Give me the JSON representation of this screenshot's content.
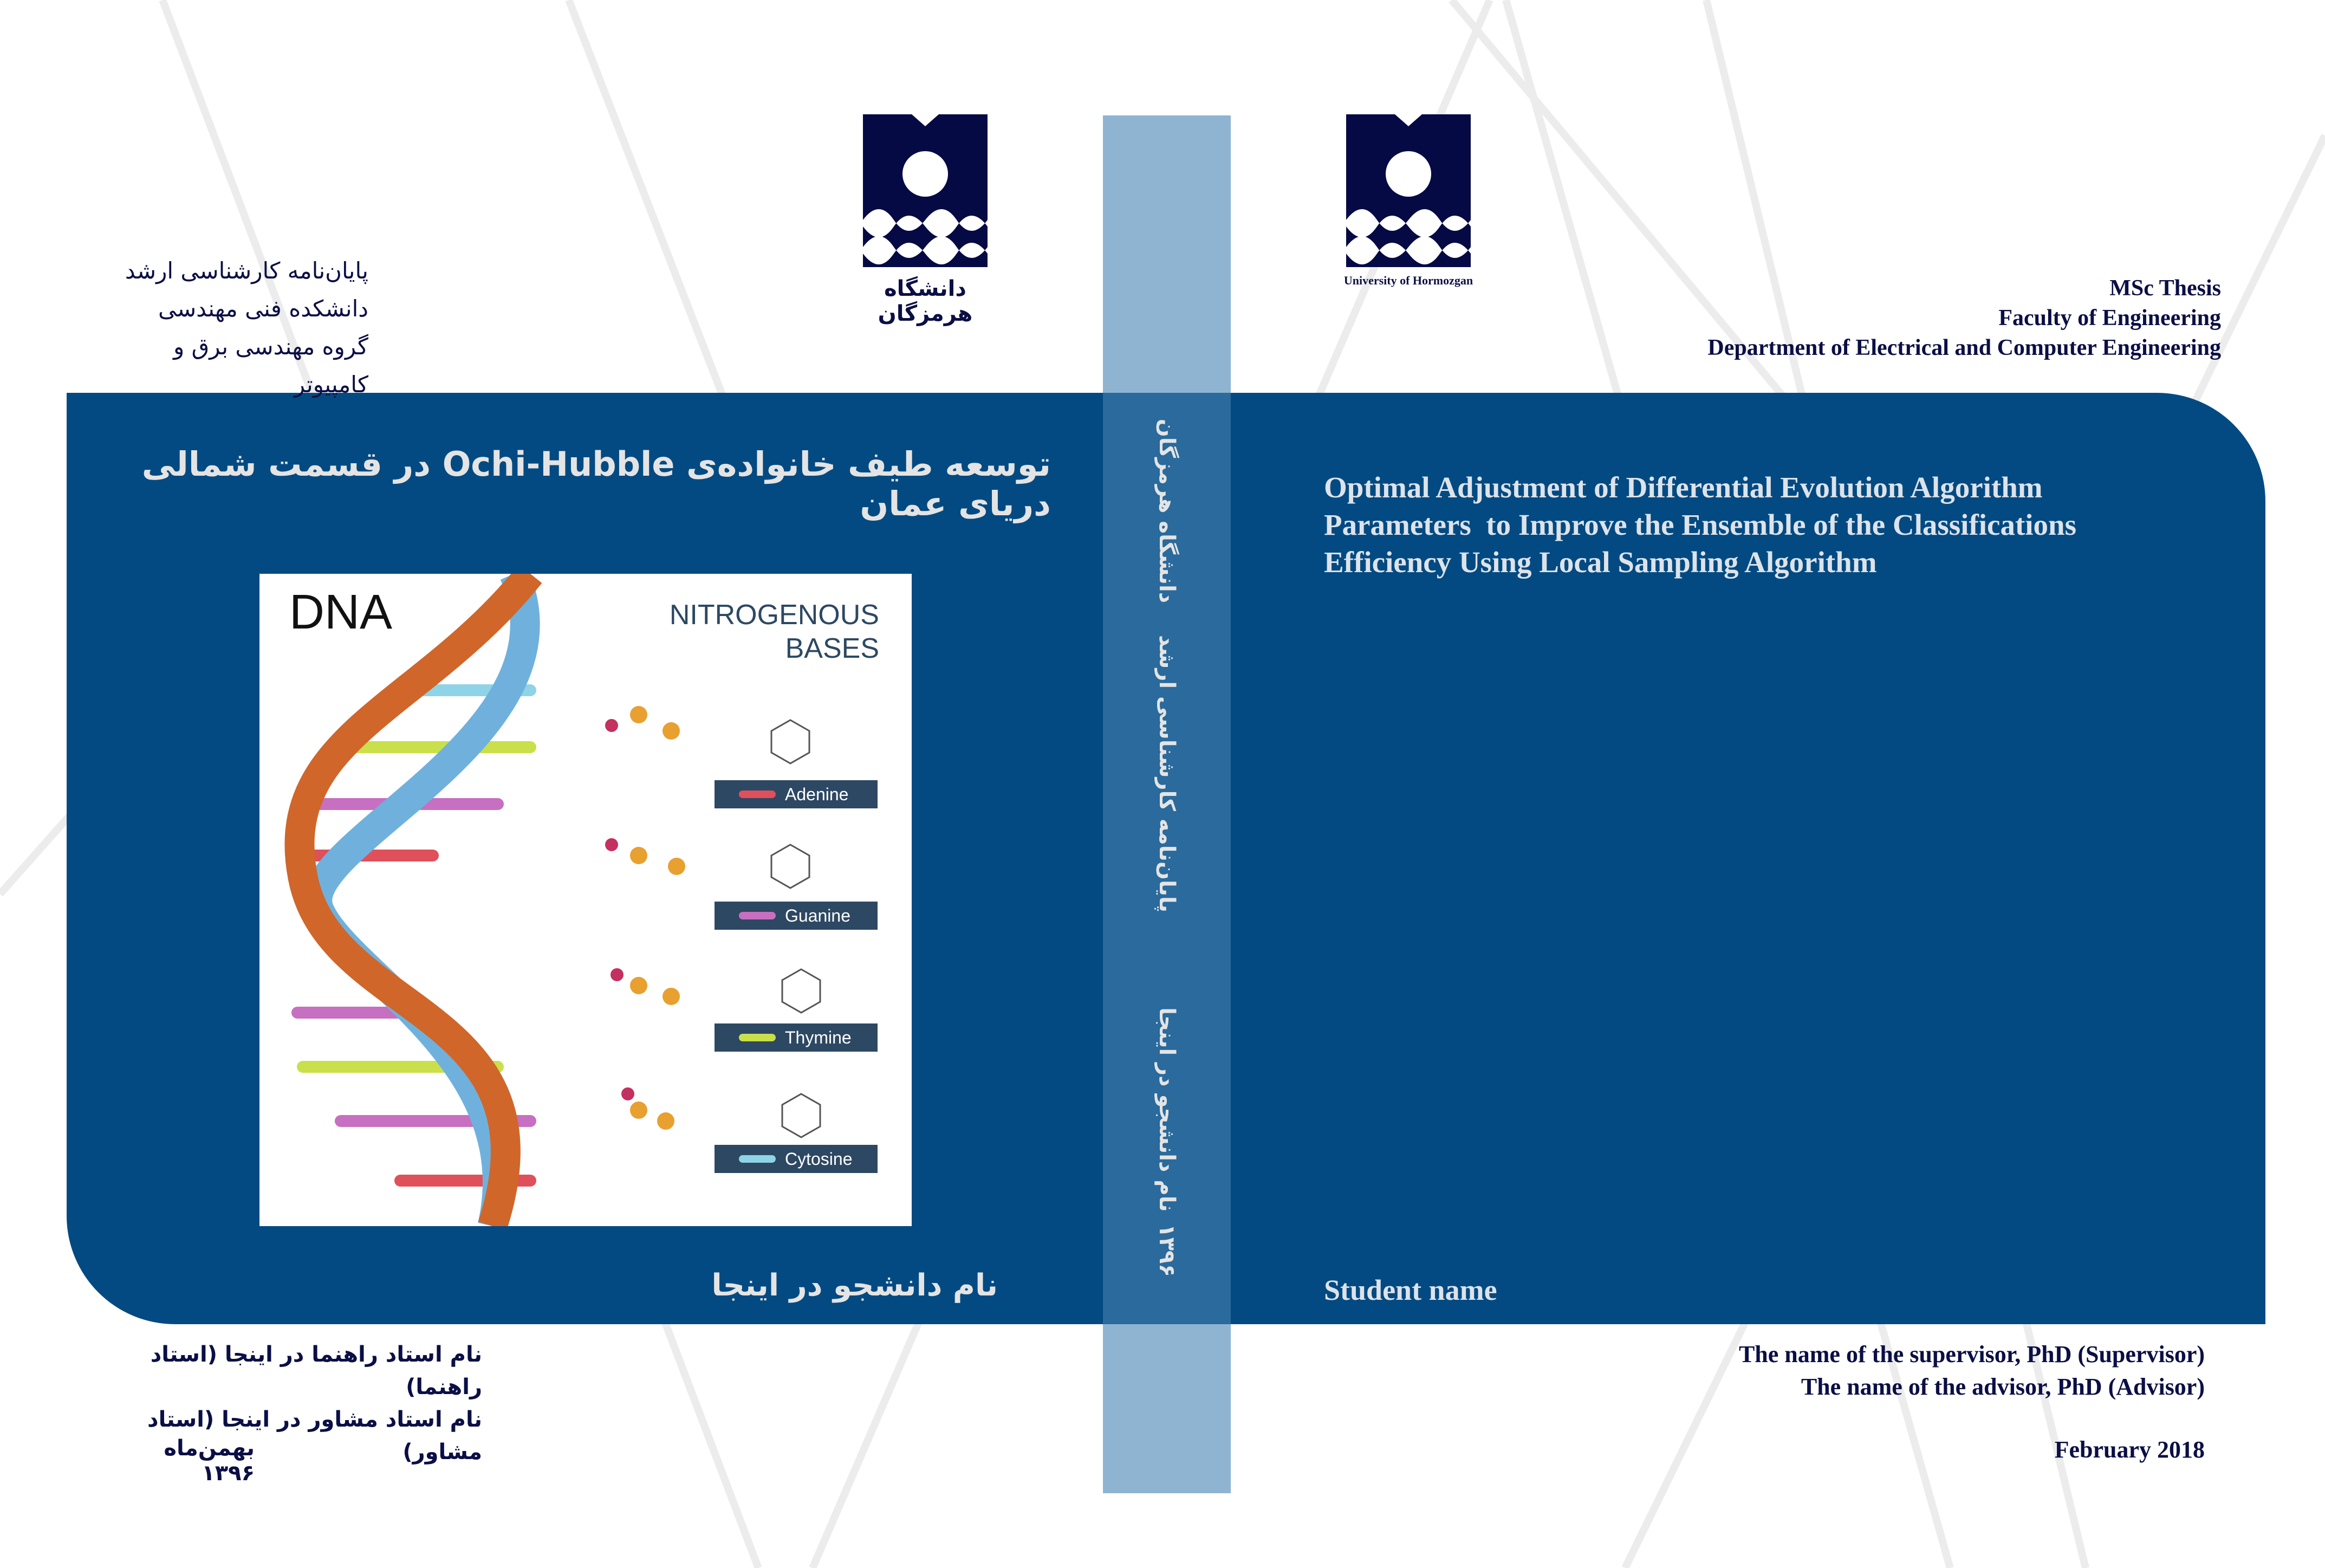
{
  "colors": {
    "band": "#034a82",
    "spine": "#2a6a9c",
    "spine_outer": "#8fb4d2",
    "text_navy": "#0b0f45"
  },
  "left_cover": {
    "header_lines": [
      "پایان‌نامه کارشناسی ارشد",
      "دانشکده فنی مهندسی",
      "گروه مهندسی برق و کامپیوتر"
    ],
    "logo_caption": "دانشگاه هرمزگان",
    "title": "توسعه طیف خانواده‌ی Ochi-Hubble در قسمت شمالی دریای عمان",
    "image": {
      "title": "DNA",
      "subtitle_lines": [
        "NITROGENOUS",
        "BASES"
      ],
      "bases": [
        {
          "name": "Adenine",
          "color": "#e0505a"
        },
        {
          "name": "Guanine",
          "color": "#c76fc0"
        },
        {
          "name": "Thymine",
          "color": "#c9e04a"
        },
        {
          "name": "Cytosine",
          "color": "#8fd4e6"
        }
      ]
    },
    "student": "نام دانشجو در اینجا",
    "supervisor": "نام استاد راهنما در اینجا (استاد راهنما)",
    "advisor": "نام استاد مشاور در اینجا (استاد مشاور)",
    "date": "بهمن‌ماه ۱۳۹۶"
  },
  "spine": {
    "texts": [
      "دانشگاه هرمزگان",
      "پایان‌نامه کارشناسی ارشد",
      "نام دانشجو در اینجا",
      "۱۳۹۶"
    ]
  },
  "right_cover": {
    "logo_caption": "University of Hormozgan",
    "header_lines": [
      "MSc Thesis",
      "Faculty of Engineering",
      "Department of Electrical and Computer Engineering"
    ],
    "title_lines": [
      "Optimal Adjustment of Differential Evolution Algorithm",
      "Parameters  to Improve the Ensemble of the Classifications",
      "Efficiency Using Local Sampling Algorithm"
    ],
    "student": "Student name",
    "supervisor": "The name of the supervisor, PhD (Supervisor)",
    "advisor": "The name of the advisor, PhD (Advisor)",
    "date": "February 2018"
  }
}
